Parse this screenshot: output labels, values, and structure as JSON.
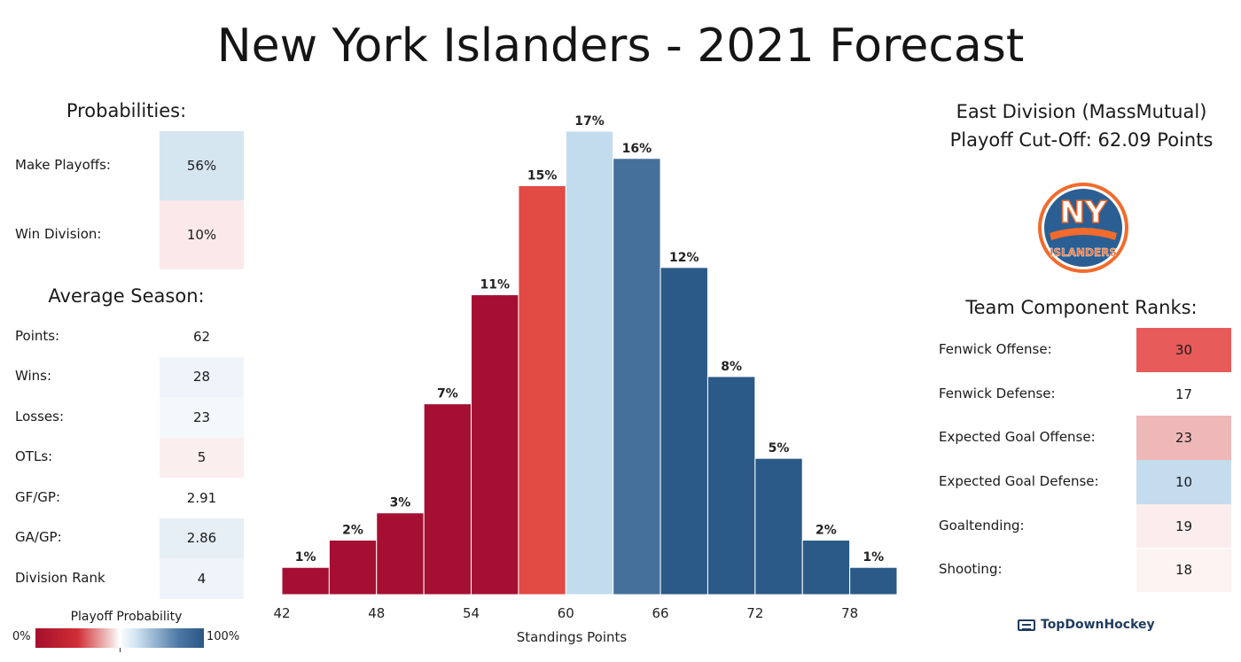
{
  "title": "New York Islanders - 2021 Forecast",
  "probabilities": {
    "heading": "Probabilities:",
    "rows": [
      {
        "label": "Make Playoffs:",
        "value": "56%",
        "color": "#d6e6f1"
      },
      {
        "label": "Win Division:",
        "value": "10%",
        "color": "#fbe9e9"
      }
    ]
  },
  "average_season": {
    "heading": "Average Season:",
    "rows": [
      {
        "label": "Points:",
        "value": "62",
        "color": "#ffffff"
      },
      {
        "label": "Wins:",
        "value": "28",
        "color": "#eef4f9"
      },
      {
        "label": "Losses:",
        "value": "23",
        "color": "#f3f8fb"
      },
      {
        "label": "OTLs:",
        "value": "5",
        "color": "#fbeeee"
      },
      {
        "label": "GF/GP:",
        "value": "2.91",
        "color": "#ffffff"
      },
      {
        "label": "GA/GP:",
        "value": "2.86",
        "color": "#e6eff6"
      },
      {
        "label": "Division Rank",
        "value": "4",
        "color": "#eef4f9"
      }
    ]
  },
  "legend": {
    "title": "Playoff Probability",
    "min_label": "0%",
    "max_label": "100%"
  },
  "division": {
    "line1": "East Division (MassMutual)",
    "line2": "Playoff Cut-Off: 62.09 Points"
  },
  "logo": {
    "icon": "islanders-logo",
    "text_top": "NY",
    "text_bottom": "ISLANDERS",
    "primary": "#2b5f94",
    "accent": "#f26b2c"
  },
  "ranks": {
    "heading": "Team Component Ranks:",
    "rows": [
      {
        "label": "Fenwick Offense:",
        "value": "30",
        "color": "#e75b5b"
      },
      {
        "label": "Fenwick Defense:",
        "value": "17",
        "color": "#ffffff"
      },
      {
        "label": "Expected Goal Offense:",
        "value": "23",
        "color": "#efb8b8"
      },
      {
        "label": "Expected Goal Defense:",
        "value": "10",
        "color": "#c4dcee"
      },
      {
        "label": "Goaltending:",
        "value": "19",
        "color": "#fbeded"
      },
      {
        "label": "Shooting:",
        "value": "18",
        "color": "#fdf3f3"
      }
    ]
  },
  "brand": "TopDownHockey",
  "chart_data": {
    "type": "bar",
    "xlabel": "Standings Points",
    "ylabel": "",
    "x_ticks": [
      42,
      48,
      54,
      60,
      66,
      72,
      78
    ],
    "bin_edges": [
      42,
      45,
      48,
      51,
      54,
      57,
      60,
      63,
      66,
      69,
      72,
      75,
      78,
      81
    ],
    "values": [
      1,
      2,
      3,
      7,
      11,
      15,
      17,
      16,
      12,
      8,
      5,
      2,
      1
    ],
    "labels": [
      "1%",
      "2%",
      "3%",
      "7%",
      "11%",
      "15%",
      "17%",
      "16%",
      "12%",
      "8%",
      "5%",
      "2%",
      "1%"
    ],
    "colors": [
      "#a50f32",
      "#a50f32",
      "#a50f32",
      "#a50f32",
      "#a50f32",
      "#e24a44",
      "#c2dcee",
      "#45709c",
      "#2b5a88",
      "#2b5a88",
      "#2b5a88",
      "#2b5a88",
      "#2b5a88"
    ],
    "ylim": [
      0,
      17
    ]
  }
}
